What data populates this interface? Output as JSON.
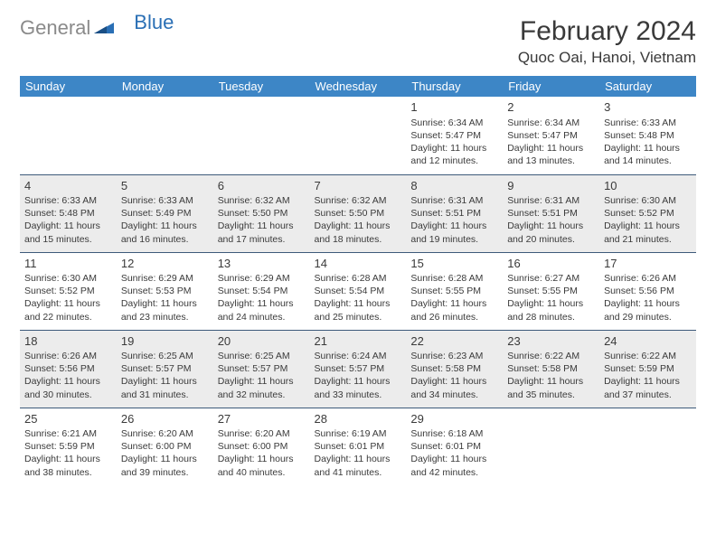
{
  "brand": {
    "part1": "General",
    "part2": "Blue"
  },
  "title": "February 2024",
  "location": "Quoc Oai, Hanoi, Vietnam",
  "colors": {
    "header_bg": "#3d86c6",
    "header_text": "#ffffff",
    "alt_row_bg": "#ececec",
    "row_border": "#3d5a7a",
    "text": "#3a3a3a",
    "logo_gray": "#8a8a8a",
    "logo_blue": "#2a6fb5"
  },
  "weekdays": [
    "Sunday",
    "Monday",
    "Tuesday",
    "Wednesday",
    "Thursday",
    "Friday",
    "Saturday"
  ],
  "weeks": [
    [
      null,
      null,
      null,
      null,
      {
        "day": "1",
        "sunrise": "6:34 AM",
        "sunset": "5:47 PM",
        "daylight": "11 hours and 12 minutes."
      },
      {
        "day": "2",
        "sunrise": "6:34 AM",
        "sunset": "5:47 PM",
        "daylight": "11 hours and 13 minutes."
      },
      {
        "day": "3",
        "sunrise": "6:33 AM",
        "sunset": "5:48 PM",
        "daylight": "11 hours and 14 minutes."
      }
    ],
    [
      {
        "day": "4",
        "sunrise": "6:33 AM",
        "sunset": "5:48 PM",
        "daylight": "11 hours and 15 minutes."
      },
      {
        "day": "5",
        "sunrise": "6:33 AM",
        "sunset": "5:49 PM",
        "daylight": "11 hours and 16 minutes."
      },
      {
        "day": "6",
        "sunrise": "6:32 AM",
        "sunset": "5:50 PM",
        "daylight": "11 hours and 17 minutes."
      },
      {
        "day": "7",
        "sunrise": "6:32 AM",
        "sunset": "5:50 PM",
        "daylight": "11 hours and 18 minutes."
      },
      {
        "day": "8",
        "sunrise": "6:31 AM",
        "sunset": "5:51 PM",
        "daylight": "11 hours and 19 minutes."
      },
      {
        "day": "9",
        "sunrise": "6:31 AM",
        "sunset": "5:51 PM",
        "daylight": "11 hours and 20 minutes."
      },
      {
        "day": "10",
        "sunrise": "6:30 AM",
        "sunset": "5:52 PM",
        "daylight": "11 hours and 21 minutes."
      }
    ],
    [
      {
        "day": "11",
        "sunrise": "6:30 AM",
        "sunset": "5:52 PM",
        "daylight": "11 hours and 22 minutes."
      },
      {
        "day": "12",
        "sunrise": "6:29 AM",
        "sunset": "5:53 PM",
        "daylight": "11 hours and 23 minutes."
      },
      {
        "day": "13",
        "sunrise": "6:29 AM",
        "sunset": "5:54 PM",
        "daylight": "11 hours and 24 minutes."
      },
      {
        "day": "14",
        "sunrise": "6:28 AM",
        "sunset": "5:54 PM",
        "daylight": "11 hours and 25 minutes."
      },
      {
        "day": "15",
        "sunrise": "6:28 AM",
        "sunset": "5:55 PM",
        "daylight": "11 hours and 26 minutes."
      },
      {
        "day": "16",
        "sunrise": "6:27 AM",
        "sunset": "5:55 PM",
        "daylight": "11 hours and 28 minutes."
      },
      {
        "day": "17",
        "sunrise": "6:26 AM",
        "sunset": "5:56 PM",
        "daylight": "11 hours and 29 minutes."
      }
    ],
    [
      {
        "day": "18",
        "sunrise": "6:26 AM",
        "sunset": "5:56 PM",
        "daylight": "11 hours and 30 minutes."
      },
      {
        "day": "19",
        "sunrise": "6:25 AM",
        "sunset": "5:57 PM",
        "daylight": "11 hours and 31 minutes."
      },
      {
        "day": "20",
        "sunrise": "6:25 AM",
        "sunset": "5:57 PM",
        "daylight": "11 hours and 32 minutes."
      },
      {
        "day": "21",
        "sunrise": "6:24 AM",
        "sunset": "5:57 PM",
        "daylight": "11 hours and 33 minutes."
      },
      {
        "day": "22",
        "sunrise": "6:23 AM",
        "sunset": "5:58 PM",
        "daylight": "11 hours and 34 minutes."
      },
      {
        "day": "23",
        "sunrise": "6:22 AM",
        "sunset": "5:58 PM",
        "daylight": "11 hours and 35 minutes."
      },
      {
        "day": "24",
        "sunrise": "6:22 AM",
        "sunset": "5:59 PM",
        "daylight": "11 hours and 37 minutes."
      }
    ],
    [
      {
        "day": "25",
        "sunrise": "6:21 AM",
        "sunset": "5:59 PM",
        "daylight": "11 hours and 38 minutes."
      },
      {
        "day": "26",
        "sunrise": "6:20 AM",
        "sunset": "6:00 PM",
        "daylight": "11 hours and 39 minutes."
      },
      {
        "day": "27",
        "sunrise": "6:20 AM",
        "sunset": "6:00 PM",
        "daylight": "11 hours and 40 minutes."
      },
      {
        "day": "28",
        "sunrise": "6:19 AM",
        "sunset": "6:01 PM",
        "daylight": "11 hours and 41 minutes."
      },
      {
        "day": "29",
        "sunrise": "6:18 AM",
        "sunset": "6:01 PM",
        "daylight": "11 hours and 42 minutes."
      },
      null,
      null
    ]
  ],
  "labels": {
    "sunrise_prefix": "Sunrise: ",
    "sunset_prefix": "Sunset: ",
    "daylight_prefix": "Daylight: "
  }
}
